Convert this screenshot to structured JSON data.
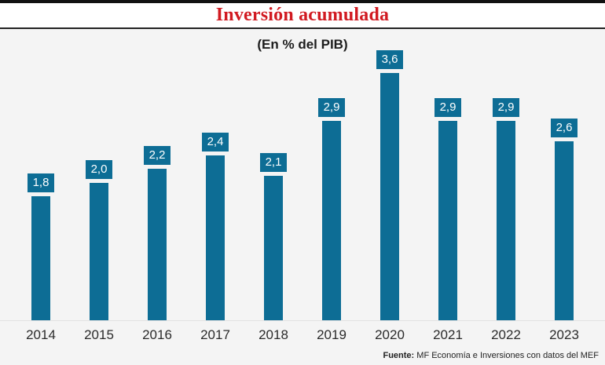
{
  "header": {
    "title": "Inversión acumulada"
  },
  "chart_data": {
    "type": "bar",
    "title": "Inversión acumulada",
    "subtitle": "(En % del PIB)",
    "categories": [
      "2014",
      "2015",
      "2016",
      "2017",
      "2018",
      "2019",
      "2020",
      "2021",
      "2022",
      "2023"
    ],
    "values": [
      1.8,
      2.0,
      2.2,
      2.4,
      2.1,
      2.9,
      3.6,
      2.9,
      2.9,
      2.6
    ],
    "value_labels": [
      "1,8",
      "2,0",
      "2,2",
      "2,4",
      "2,1",
      "2,9",
      "3,6",
      "2,9",
      "2,9",
      "2,6"
    ],
    "xlabel": "",
    "ylabel": "",
    "ylim": [
      0,
      4.24
    ],
    "grid": false,
    "legend": false,
    "bar_color": "#0d6d95",
    "title_color": "#d11a21",
    "background_color": "#f4f4f4"
  },
  "footer": {
    "source_label": "Fuente:",
    "source_text": " MF Economía e Inversiones con datos del MEF"
  }
}
